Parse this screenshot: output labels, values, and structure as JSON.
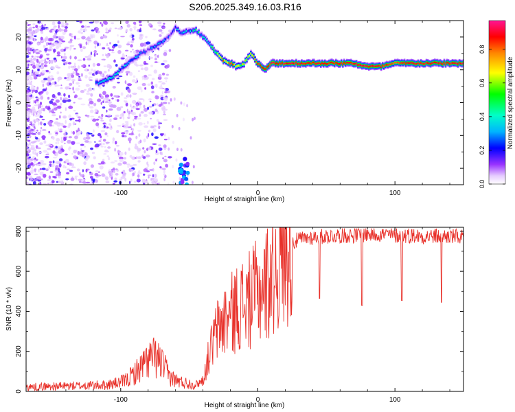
{
  "figure": {
    "title": "S206.2025.349.16.03.R16"
  },
  "colors": {
    "snr_line": "#e8312a",
    "axis": "#000000",
    "background": "#ffffff"
  },
  "chart_data": [
    {
      "type": "heatmap",
      "xlabel": "Height of straight line (km)",
      "ylabel": "Frequency (Hz)",
      "xlim": [
        -169,
        150
      ],
      "ylim": [
        -25,
        25
      ],
      "xticks": [
        -100,
        0,
        100
      ],
      "yticks": [
        20,
        10,
        0,
        -10,
        -20
      ],
      "colorbar": {
        "label": "Normalized spectral amplitude",
        "range": [
          0.0,
          0.97
        ],
        "ticks": [
          "0.0",
          "0.2",
          "0.4",
          "0.6",
          "0.8"
        ]
      },
      "ridge": {
        "x": [
          -115,
          -105,
          -95,
          -85,
          -75,
          -65,
          -60,
          -55,
          -50,
          -45,
          -40,
          -35,
          -30,
          -25,
          -20,
          -15,
          -10,
          -5,
          0,
          5,
          10,
          20,
          40,
          60,
          70,
          80,
          90,
          100,
          110,
          120,
          130,
          140,
          150
        ],
        "y": [
          6,
          8,
          12,
          15,
          17,
          20,
          23,
          21,
          22,
          22,
          20,
          18,
          15,
          13,
          12,
          11,
          12,
          15,
          12,
          10,
          12,
          12,
          12,
          12,
          12,
          11,
          11,
          12,
          12,
          12,
          12,
          12,
          12
        ],
        "amplitude": [
          0.3,
          0.35,
          0.3,
          0.25,
          0.25,
          0.2,
          0.25,
          0.3,
          0.3,
          0.4,
          0.35,
          0.45,
          0.6,
          0.75,
          0.85,
          0.7,
          0.6,
          0.7,
          0.85,
          0.9,
          0.92,
          0.92,
          0.9,
          0.9,
          0.92,
          0.92,
          0.9,
          0.85,
          0.9,
          0.9,
          0.9,
          0.92,
          0.92
        ]
      }
    },
    {
      "type": "line",
      "xlabel": "Height of straight line (km)",
      "ylabel": "SNR (10 * v/v)",
      "xlim": [
        -169,
        150
      ],
      "ylim": [
        0,
        820
      ],
      "xticks": [
        -100,
        0,
        100
      ],
      "yticks": [
        0,
        200,
        400,
        600,
        800
      ],
      "series": [
        {
          "x": [
            -169,
            -150,
            -130,
            -110,
            -100,
            -95,
            -90,
            -85,
            -80,
            -75,
            -70,
            -65,
            -60,
            -55,
            -50,
            -45,
            -40,
            -35,
            -30,
            -25,
            -20,
            -15,
            -10,
            -5,
            0,
            5,
            10,
            15,
            20,
            25,
            30,
            40,
            50,
            60,
            70,
            80,
            90,
            100,
            110,
            120,
            130,
            140,
            150
          ],
          "y": [
            22,
            25,
            28,
            32,
            45,
            60,
            90,
            120,
            160,
            170,
            140,
            80,
            55,
            45,
            40,
            35,
            55,
            200,
            300,
            350,
            380,
            420,
            440,
            460,
            500,
            530,
            580,
            640,
            700,
            740,
            760,
            770,
            775,
            780,
            780,
            785,
            785,
            780,
            780,
            775,
            775,
            775,
            770
          ]
        }
      ],
      "dips": [
        {
          "x": 45,
          "y": 465
        },
        {
          "x": 76,
          "y": 430
        },
        {
          "x": 105,
          "y": 455
        },
        {
          "x": 134,
          "y": 445
        }
      ]
    }
  ]
}
